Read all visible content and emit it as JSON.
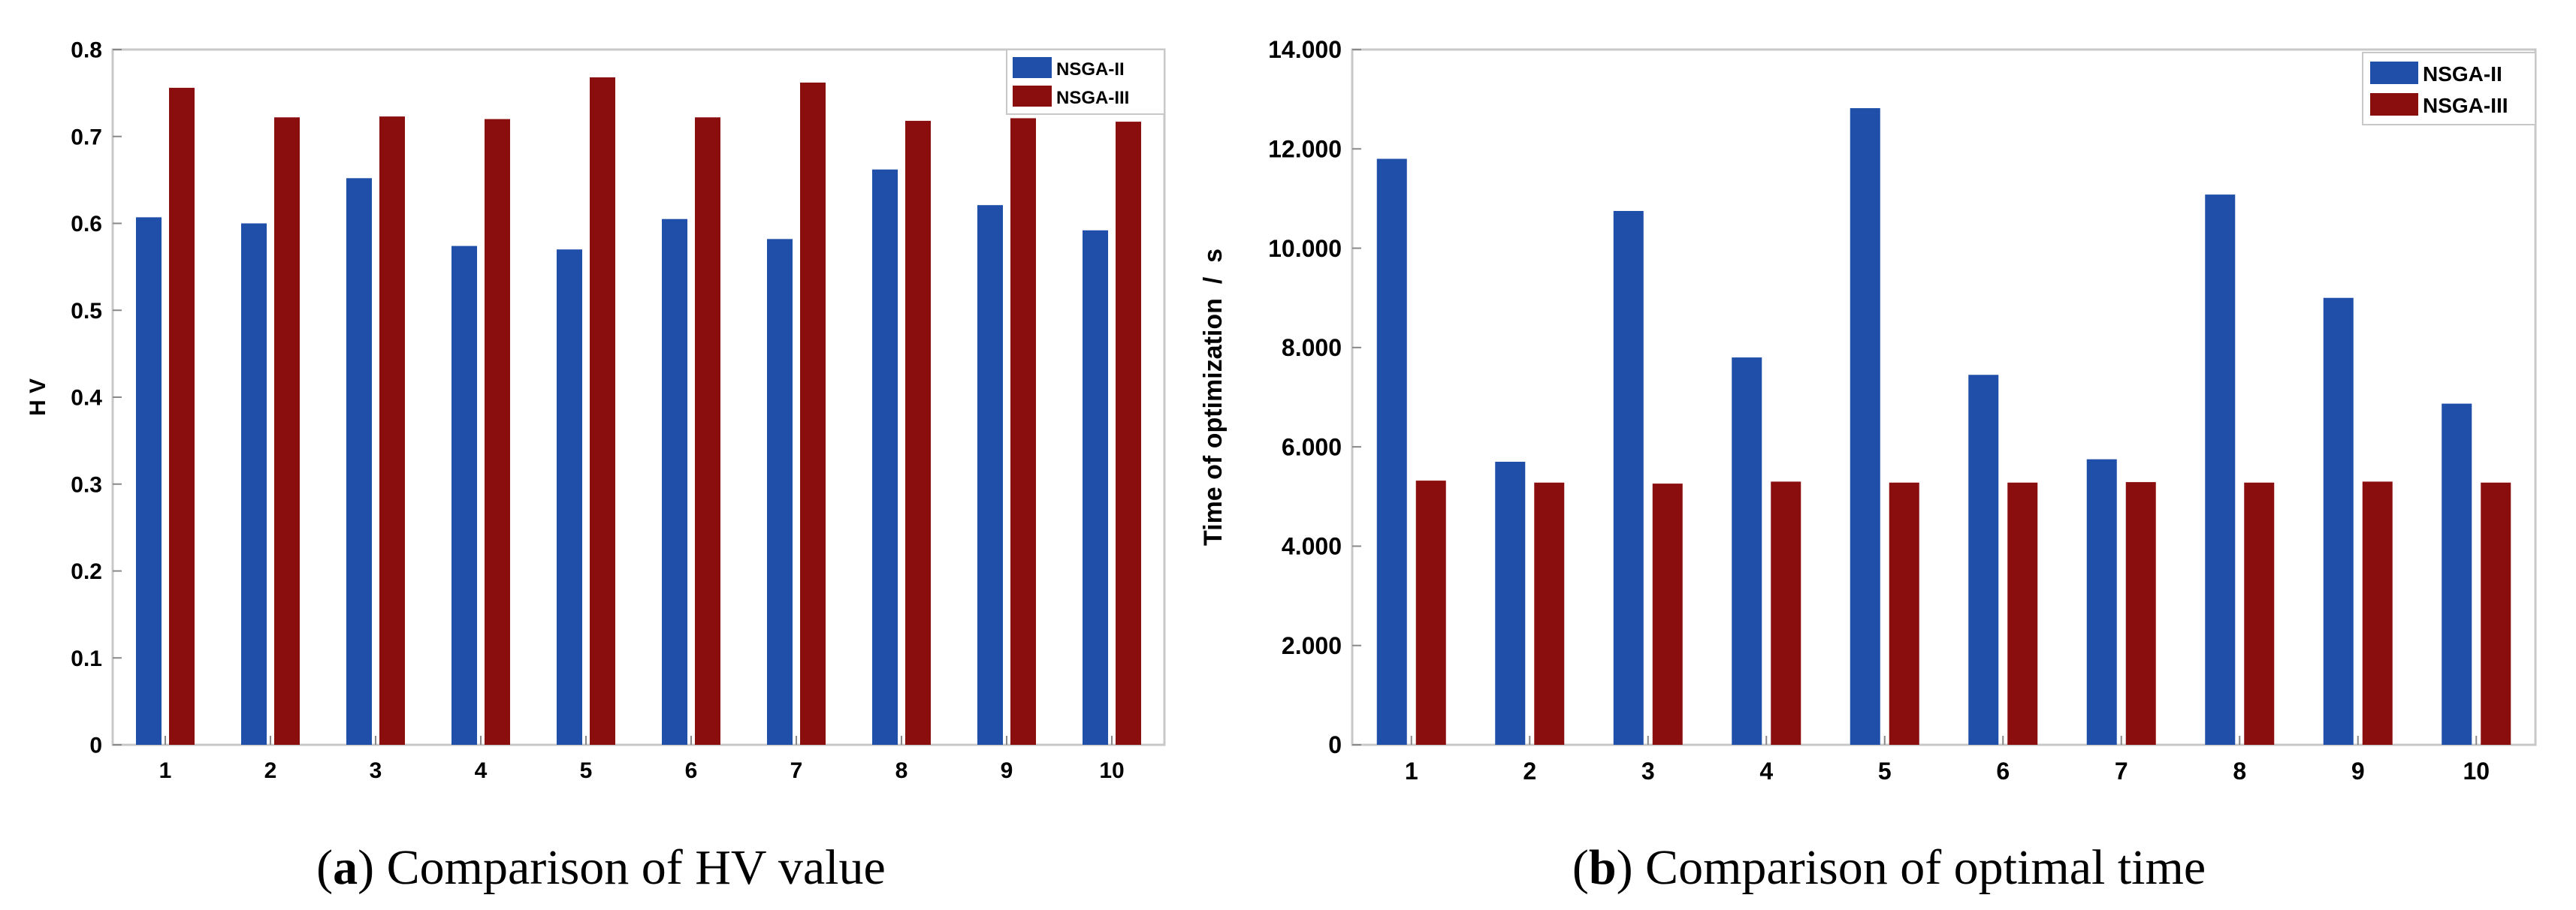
{
  "chart_data": [
    {
      "type": "bar",
      "panel_letter": "a",
      "caption": "Comparison of HV value",
      "title": "",
      "xlabel": "",
      "ylabel": "H V",
      "categories": [
        "1",
        "2",
        "3",
        "4",
        "5",
        "6",
        "7",
        "8",
        "9",
        "10"
      ],
      "ylim": [
        0,
        0.8
      ],
      "yticks": [
        0,
        0.1,
        0.2,
        0.3,
        0.4,
        0.5,
        0.6,
        0.7,
        0.8
      ],
      "ytick_labels": [
        "0",
        "0.1",
        "0.2",
        "0.3",
        "0.4",
        "0.5",
        "0.6",
        "0.7",
        "0.8"
      ],
      "legend_position": "top-right",
      "series": [
        {
          "name": "NSGA-II",
          "color": "#1f4fa8",
          "values": [
            0.607,
            0.6,
            0.652,
            0.574,
            0.57,
            0.605,
            0.582,
            0.662,
            0.621,
            0.592
          ]
        },
        {
          "name": "NSGA-III",
          "color": "#8b0e0e",
          "values": [
            0.756,
            0.722,
            0.723,
            0.72,
            0.768,
            0.722,
            0.762,
            0.718,
            0.721,
            0.717
          ]
        }
      ]
    },
    {
      "type": "bar",
      "panel_letter": "b",
      "caption": "Comparison of optimal time",
      "title": "",
      "xlabel": "",
      "ylabel": "Time of optimization  /  s",
      "categories": [
        "1",
        "2",
        "3",
        "4",
        "5",
        "6",
        "7",
        "8",
        "9",
        "10"
      ],
      "ylim": [
        0,
        14000
      ],
      "yticks": [
        0,
        2000,
        4000,
        6000,
        8000,
        10000,
        12000,
        14000
      ],
      "ytick_labels": [
        "0",
        "2.000",
        "4.000",
        "6.000",
        "8.000",
        "10.000",
        "12.000",
        "14.000"
      ],
      "legend_position": "top-right",
      "series": [
        {
          "name": "NSGA-II",
          "color": "#1f4fa8",
          "values": [
            11800,
            5700,
            10750,
            7800,
            12820,
            7450,
            5750,
            11080,
            9000,
            6870
          ]
        },
        {
          "name": "NSGA-III",
          "color": "#8b0e0e",
          "values": [
            5320,
            5280,
            5260,
            5300,
            5280,
            5280,
            5290,
            5280,
            5300,
            5280
          ]
        }
      ]
    }
  ]
}
